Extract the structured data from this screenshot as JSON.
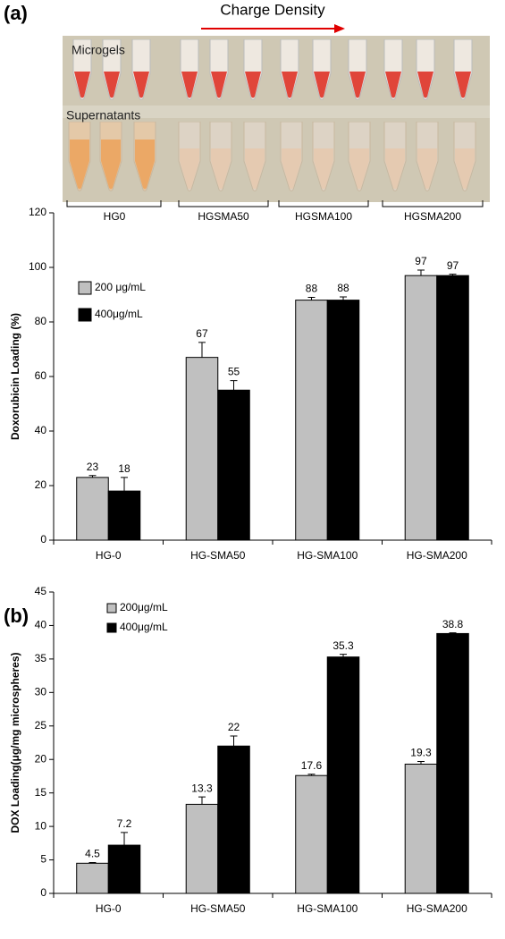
{
  "photo": {
    "panel_label": "(a)",
    "arrow_label": "Charge Density",
    "row_labels": [
      "Microgels",
      "Supernatants"
    ],
    "groups": [
      "HG0",
      "HGSMA50",
      "HGSMA100",
      "HGSMA200"
    ]
  },
  "chart_data": [
    {
      "type": "bar",
      "y_label": "Doxorubicin Loading (%)",
      "categories": [
        "HG-0",
        "HG-SMA50",
        "HG-SMA100",
        "HG-SMA200"
      ],
      "series": [
        {
          "name": "200 μg/mL",
          "color": "#c0c0c0",
          "values": [
            23,
            67,
            88,
            97
          ],
          "errors": [
            0.7,
            5.5,
            1.0,
            2.0
          ]
        },
        {
          "name": "400μg/mL",
          "color": "#000000",
          "values": [
            18,
            55,
            88,
            97
          ],
          "errors": [
            5,
            3.5,
            1.2,
            0.5
          ]
        }
      ],
      "ylim": [
        0,
        120
      ],
      "yticks": [
        0,
        20,
        40,
        60,
        80,
        100,
        120
      ],
      "grid": false,
      "legend": "upper left"
    },
    {
      "type": "bar",
      "panel_label": "(b)",
      "y_label": "DOX Loading(μg/mg microspheres)",
      "categories": [
        "HG-0",
        "HG-SMA50",
        "HG-SMA100",
        "HG-SMA200"
      ],
      "series": [
        {
          "name": "200μg/mL",
          "color": "#c0c0c0",
          "values": [
            4.5,
            13.3,
            17.6,
            19.3
          ],
          "errors": [
            0.1,
            1.1,
            0.2,
            0.4
          ]
        },
        {
          "name": "400μg/mL",
          "color": "#000000",
          "values": [
            7.2,
            22,
            35.3,
            38.8
          ],
          "errors": [
            1.9,
            1.5,
            0.4,
            0.1
          ]
        }
      ],
      "ylim": [
        0,
        45
      ],
      "yticks": [
        0,
        5,
        10,
        15,
        20,
        25,
        30,
        35,
        40,
        45
      ],
      "grid": false,
      "legend": "upper left"
    }
  ]
}
